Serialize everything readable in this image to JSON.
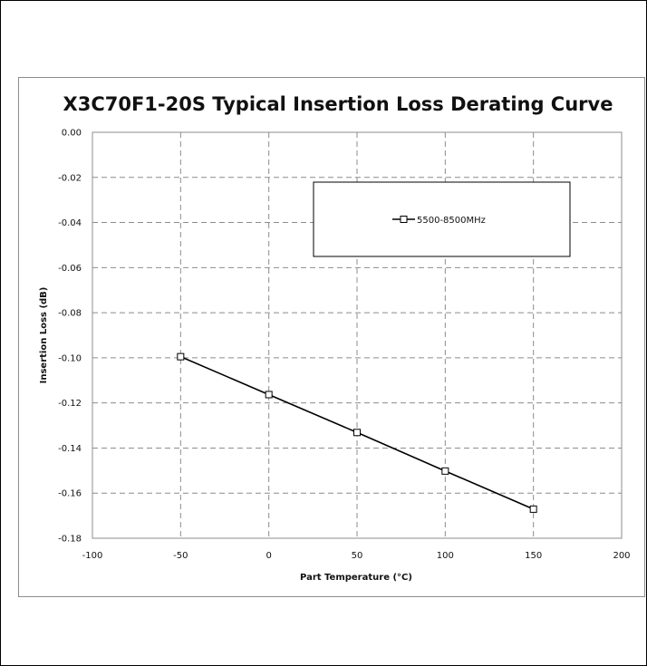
{
  "chart_data": {
    "type": "line",
    "title": "X3C70F1-20S Typical Insertion Loss Derating Curve",
    "xlabel": "Part Temperature (°C)",
    "ylabel": "Insertion Loss (dB)",
    "xlim": [
      -100,
      200
    ],
    "ylim": [
      -0.18,
      0.0
    ],
    "xticks": [
      -100,
      -50,
      0,
      50,
      100,
      150,
      200
    ],
    "yticks": [
      0.0,
      -0.02,
      -0.04,
      -0.06,
      -0.08,
      -0.1,
      -0.12,
      -0.14,
      -0.16,
      -0.18
    ],
    "xtick_labels": [
      "-100",
      "-50",
      "0",
      "50",
      "100",
      "150",
      "200"
    ],
    "ytick_labels": [
      "0.00",
      "-0.02",
      "-0.04",
      "-0.06",
      "-0.08",
      "-0.10",
      "-0.12",
      "-0.14",
      "-0.16",
      "-0.18"
    ],
    "grid": true,
    "legend_position": "top-right",
    "series": [
      {
        "name": "5500-8500MHz",
        "color": "#000000",
        "marker": "square",
        "x": [
          -50,
          0,
          50,
          100,
          150
        ],
        "y": [
          -0.0995,
          -0.1163,
          -0.1331,
          -0.1502,
          -0.1671
        ]
      }
    ]
  }
}
